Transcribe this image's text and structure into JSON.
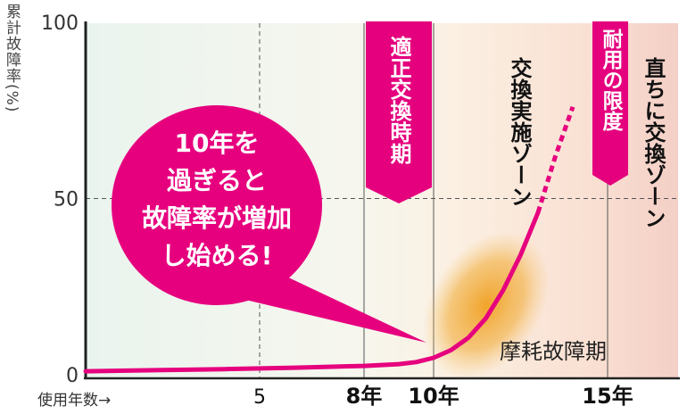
{
  "chart_data": {
    "type": "line",
    "ylabel": "累計故障率(%)",
    "xlabel": "使用年数→",
    "ylim": [
      0,
      100
    ],
    "xlim": [
      0,
      17
    ],
    "y_ticks": [
      "0",
      "50",
      "100"
    ],
    "x_ticks": [
      {
        "value": 5,
        "label": "5"
      },
      {
        "value": 8,
        "label": "8年"
      },
      {
        "value": 10,
        "label": "10年"
      },
      {
        "value": 15,
        "label": "15年"
      }
    ],
    "grid": true,
    "series": [
      {
        "color": "#e6007e",
        "x": [
          0,
          2,
          4,
          6,
          8,
          9,
          9.5,
          10,
          10.5,
          11,
          11.5,
          12,
          12.5,
          13,
          13.5,
          14
        ],
        "y": [
          1,
          1.3,
          1.6,
          2,
          2.5,
          3,
          3.6,
          4.8,
          7,
          10.5,
          16,
          24,
          34,
          46,
          62,
          76
        ],
        "dashed_from_x": 13
      }
    ],
    "annotations": {
      "callout": [
        "10年を",
        "過ぎると",
        "故障率が増加",
        "し始める!"
      ],
      "banner_1": "適正交換時期",
      "banner_2": "耐用の限度",
      "zone_1": "交換実施ゾーン",
      "zone_2": "直ちに交換ゾーン",
      "wear_period": "摩耗故障期"
    },
    "colors": {
      "line": "#e6007e",
      "banner": "#e5007e",
      "callout": "#e6007e",
      "wear_blob": "#f0a020"
    }
  }
}
